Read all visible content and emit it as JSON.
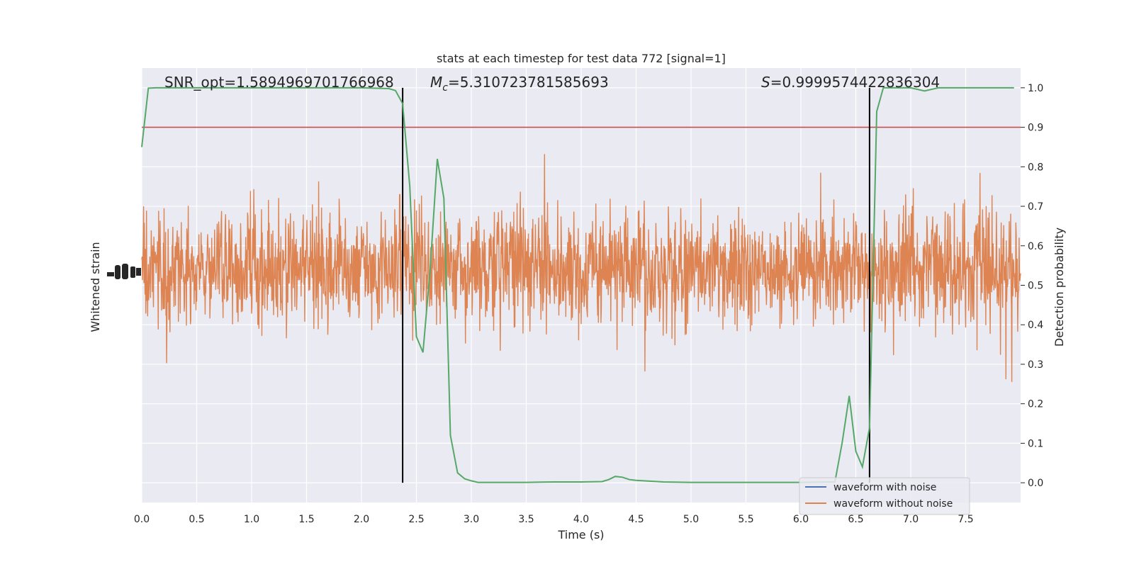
{
  "chart_data": {
    "type": "line",
    "title": "stats at each timestep for test data 772 [signal=1]",
    "xlabel": "Time (s)",
    "ylabel_left": "Whitened strain",
    "ylabel_right": "Detection probability",
    "xlim": [
      0,
      8
    ],
    "ylim_right": [
      -0.05,
      1.05
    ],
    "x_ticks": [
      "0.0",
      "0.5",
      "1.0",
      "1.5",
      "2.0",
      "2.5",
      "3.0",
      "3.5",
      "4.0",
      "4.5",
      "5.0",
      "5.5",
      "6.0",
      "6.5",
      "7.0",
      "7.5"
    ],
    "x_tick_values": [
      0,
      0.5,
      1,
      1.5,
      2,
      2.5,
      3,
      3.5,
      4,
      4.5,
      5,
      5.5,
      6,
      6.5,
      7,
      7.5
    ],
    "y_right_ticks": [
      "0.0",
      "0.1",
      "0.2",
      "0.3",
      "0.4",
      "0.5",
      "0.6",
      "0.7",
      "0.8",
      "0.9",
      "1.0"
    ],
    "y_right_tick_values": [
      0,
      0.1,
      0.2,
      0.3,
      0.4,
      0.5,
      0.6,
      0.7,
      0.8,
      0.9,
      1.0
    ],
    "grid": true,
    "legend_placement": "lower-right",
    "annotations": {
      "snr": "SNR_opt=1.5894969701766968",
      "mc_symbol": "M",
      "mc_sub": "c",
      "mc_value": "=5.310723781585693",
      "s_symbol": "S",
      "s_value": "=0.9999574422836304"
    },
    "threshold": 0.9,
    "vertical_lines_x": [
      2.375,
      6.625
    ],
    "series": [
      {
        "name": "waveform with noise",
        "color": "#4c72b0"
      },
      {
        "name": "waveform without noise",
        "color": "#dd8452"
      },
      {
        "color": "#55a868",
        "x": [
          0.0,
          0.06,
          0.125,
          0.25,
          0.5,
          1.0,
          1.5,
          2.0,
          2.25,
          2.31,
          2.375,
          2.44,
          2.5,
          2.56,
          2.625,
          2.69,
          2.75,
          2.81,
          2.875,
          2.94,
          3.0,
          3.06,
          3.125,
          3.25,
          3.5,
          3.75,
          4.0,
          4.19,
          4.25,
          4.31,
          4.375,
          4.44,
          4.5,
          4.75,
          5.0,
          5.5,
          6.0,
          6.25,
          6.31,
          6.375,
          6.44,
          6.5,
          6.56,
          6.625,
          6.69,
          6.75,
          6.81,
          6.875,
          7.0,
          7.125,
          7.25,
          7.5,
          7.75,
          7.94
        ],
        "y": [
          0.85,
          0.999,
          1.0,
          1.0,
          1.0,
          1.0,
          1.0,
          1.0,
          0.998,
          0.993,
          0.96,
          0.75,
          0.37,
          0.33,
          0.54,
          0.82,
          0.72,
          0.12,
          0.025,
          0.01,
          0.005,
          0.001,
          0.001,
          0.001,
          0.001,
          0.002,
          0.002,
          0.003,
          0.008,
          0.016,
          0.014,
          0.008,
          0.006,
          0.002,
          0.001,
          0.001,
          0.001,
          0.002,
          0.002,
          0.1,
          0.22,
          0.08,
          0.04,
          0.14,
          0.94,
          1.0,
          1.0,
          1.0,
          1.0,
          0.992,
          1.0,
          1.0,
          1.0,
          1.0
        ]
      }
    ]
  }
}
